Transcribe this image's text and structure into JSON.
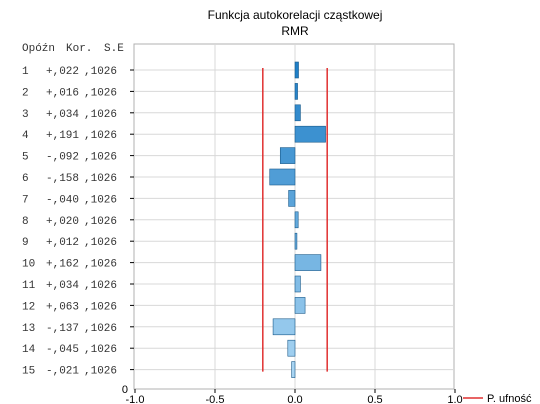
{
  "chart_data": {
    "type": "bar",
    "orientation": "horizontal",
    "title": "Funkcja autokorelacji cząstkowej",
    "subtitle": "RMR",
    "column_headers": [
      "Opóźn",
      "Kor.",
      "S.E"
    ],
    "categories": [
      "1",
      "2",
      "3",
      "4",
      "5",
      "6",
      "7",
      "8",
      "9",
      "10",
      "11",
      "12",
      "13",
      "14",
      "15"
    ],
    "values": [
      0.022,
      0.016,
      0.034,
      0.191,
      -0.092,
      -0.158,
      -0.04,
      0.02,
      0.012,
      0.162,
      0.034,
      0.063,
      -0.137,
      -0.045,
      -0.021
    ],
    "value_labels": [
      "+,022",
      "+,016",
      "+,034",
      "+,191",
      "-,092",
      "-,158",
      "-,040",
      "+,020",
      "+,012",
      "+,162",
      "+,034",
      "+,063",
      "-,137",
      "-,045",
      "-,021"
    ],
    "se_labels": [
      ",1026",
      ",1026",
      ",1026",
      ",1026",
      ",1026",
      ",1026",
      ",1026",
      ",1026",
      ",1026",
      ",1026",
      ",1026",
      ",1026",
      ",1026",
      ",1026",
      ",1026"
    ],
    "x_ticks": [
      "-1.0",
      "-0.5",
      "0.0",
      "0.5",
      "1.0"
    ],
    "x_tick_values": [
      -1.0,
      -0.5,
      0.0,
      0.5,
      1.0
    ],
    "xlim": [
      -1.0,
      1.0
    ],
    "y_tick_zero": "0",
    "confidence_limit": 0.2012,
    "legend": [
      {
        "name": "P. ufność",
        "color": "#e03030"
      }
    ],
    "legend_position": "bottom-right",
    "grid": true,
    "colors": {
      "bar_dark": "#1f7fc7",
      "bar_light": "#a8d4f2",
      "bar_stroke": "#1a5a8a",
      "conf_line": "#e03030",
      "grid": "#d8d8d8"
    }
  }
}
